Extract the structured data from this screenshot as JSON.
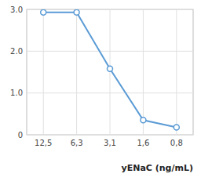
{
  "chart_data": {
    "type": "line",
    "x_label": "yENaC (ng/mL)",
    "categories": [
      "12,5",
      "6,3",
      "3,1",
      "1,6",
      "0,8"
    ],
    "values": [
      2.93,
      2.93,
      1.58,
      0.35,
      0.18
    ],
    "color": "#5b9bd5",
    "marker": "circle",
    "ylim": [
      0,
      3.0
    ],
    "yticks": [
      0,
      {
        "value": 1.0,
        "label": "1.0"
      },
      {
        "value": 2.0,
        "label": "2.0"
      },
      {
        "value": 3.0,
        "label": "3.0"
      }
    ],
    "grid": true
  }
}
